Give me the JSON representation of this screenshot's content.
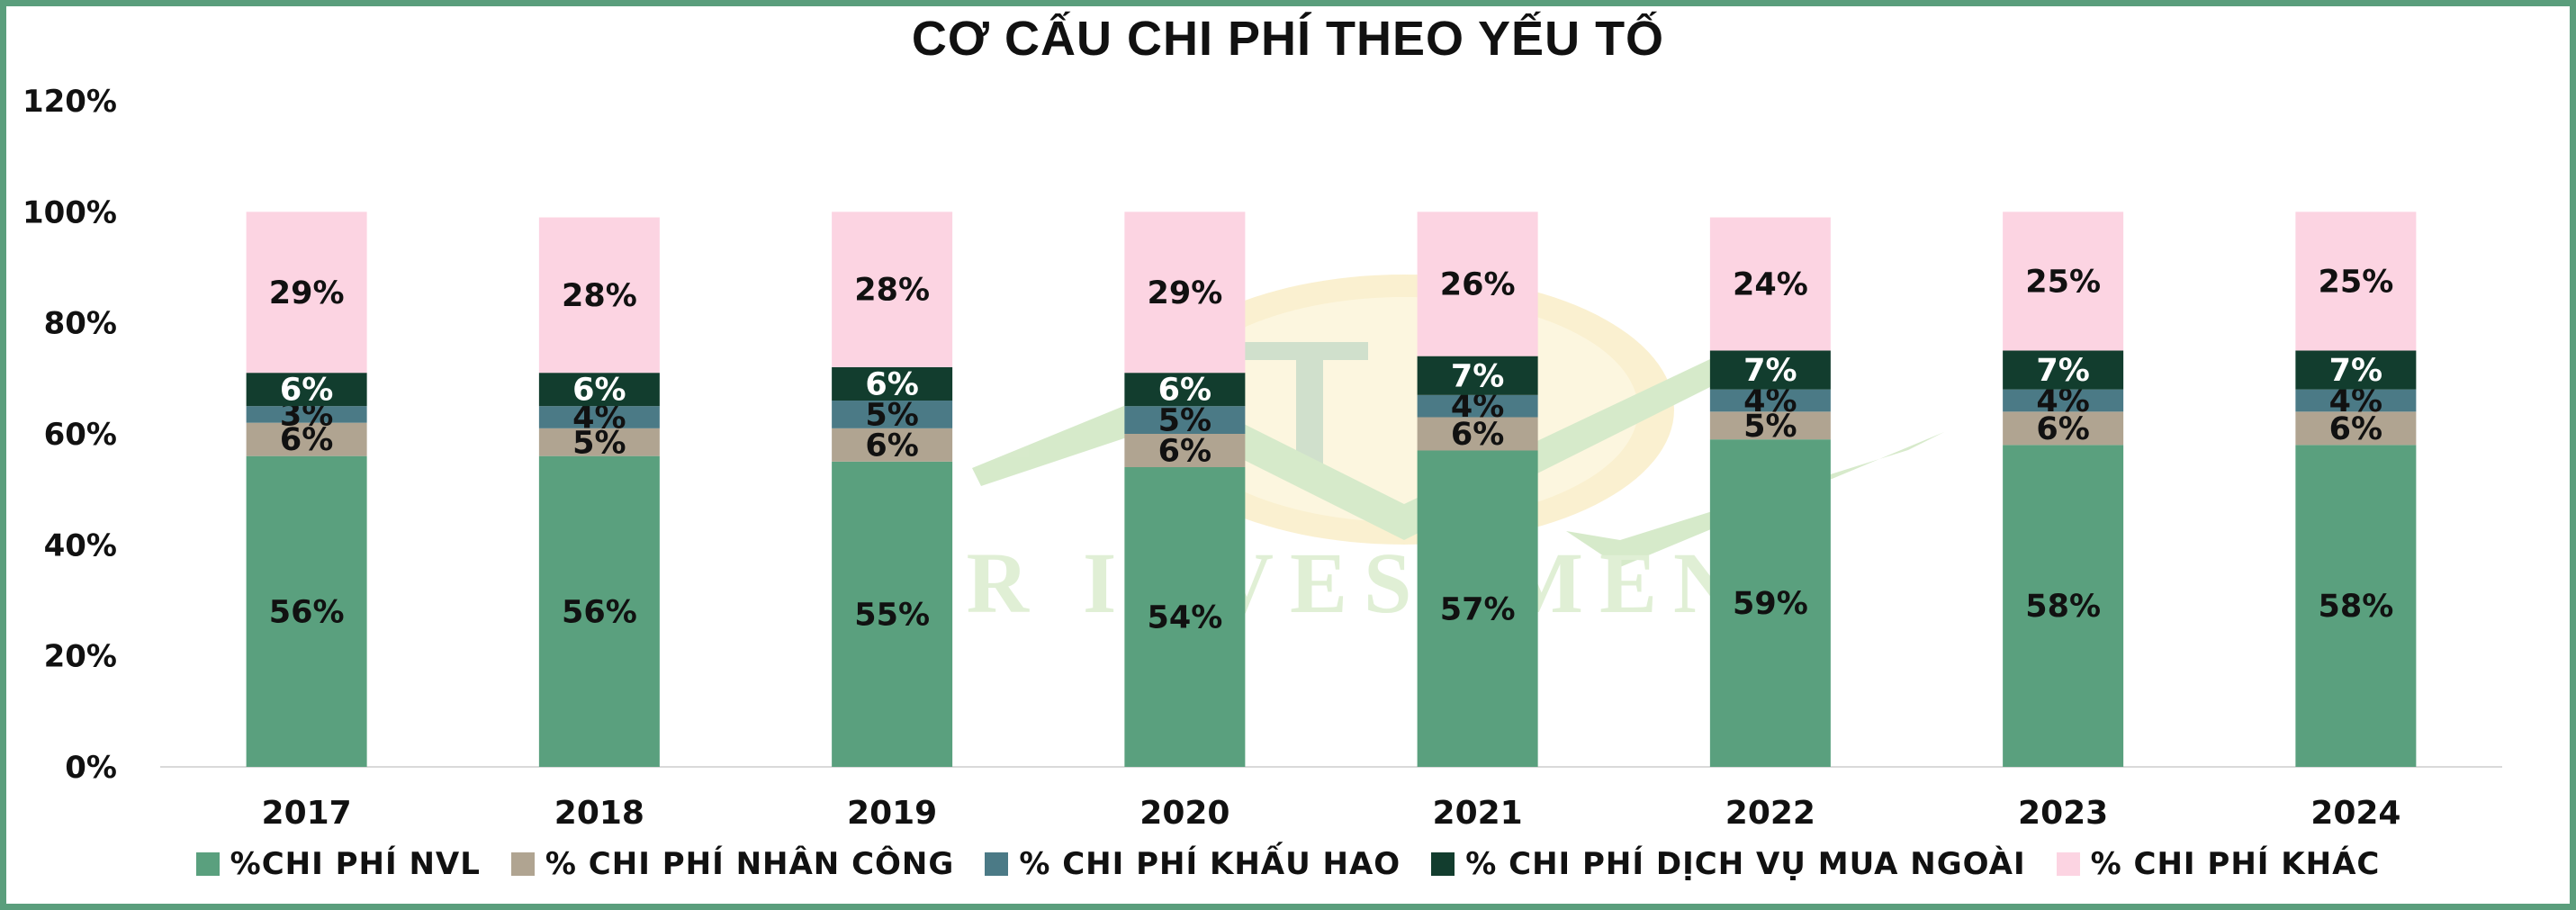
{
  "chart_data": {
    "type": "bar",
    "stacked": true,
    "title": "CƠ CẤU CHI PHÍ THEO YẾU TỐ",
    "categories": [
      "2017",
      "2018",
      "2019",
      "2020",
      "2021",
      "2022",
      "2023",
      "2024"
    ],
    "ylim": [
      0,
      120
    ],
    "yticks": [
      "0%",
      "20%",
      "40%",
      "60%",
      "80%",
      "100%",
      "120%"
    ],
    "legend_position": "bottom",
    "watermark": "TR INVESTMENT",
    "series": [
      {
        "name": "%CHI PHÍ NVL",
        "color": "#5aa07e",
        "label_color": "#111111",
        "values": [
          56,
          56,
          55,
          54,
          57,
          59,
          58,
          58
        ],
        "labels": [
          "56%",
          "56%",
          "55%",
          "54%",
          "57%",
          "59%",
          "58%",
          "58%"
        ]
      },
      {
        "name": "% CHI PHÍ NHÂN CÔNG",
        "color": "#b0a491",
        "label_color": "#111111",
        "values": [
          6,
          5,
          6,
          6,
          6,
          5,
          6,
          6
        ],
        "labels": [
          "6%",
          "5%",
          "6%",
          "6%",
          "6%",
          "5%",
          "6%",
          "6%"
        ]
      },
      {
        "name": "% CHI PHÍ KHẤU HAO",
        "color": "#4b7a86",
        "label_color": "#111111",
        "values": [
          3,
          4,
          5,
          5,
          4,
          4,
          4,
          4
        ],
        "labels": [
          "3%",
          "4%",
          "5%",
          "5%",
          "4%",
          "4%",
          "4%",
          "4%"
        ]
      },
      {
        "name": "% CHI PHÍ DỊCH VỤ MUA NGOÀI",
        "color": "#123d2e",
        "label_color": "#ffffff",
        "values": [
          6,
          6,
          6,
          6,
          7,
          7,
          7,
          7
        ],
        "labels": [
          "6%",
          "6%",
          "6%",
          "6%",
          "7%",
          "7%",
          "7%",
          "7%"
        ]
      },
      {
        "name": "% CHI PHÍ KHÁC",
        "color": "#fcd4e2",
        "label_color": "#111111",
        "values": [
          29,
          28,
          28,
          29,
          26,
          24,
          25,
          25
        ],
        "labels": [
          "29%",
          "28%",
          "28%",
          "29%",
          "26%",
          "24%",
          "25%",
          "25%"
        ]
      }
    ]
  }
}
